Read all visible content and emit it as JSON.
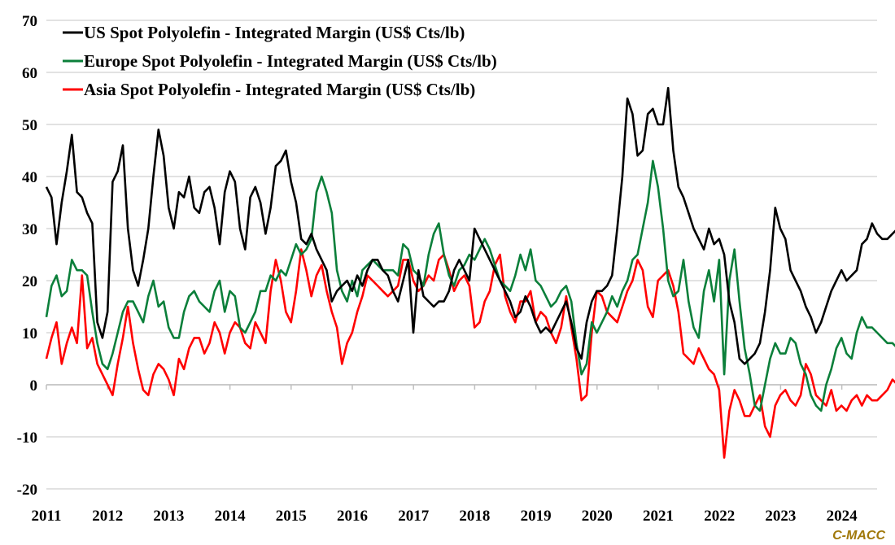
{
  "chart_data": {
    "type": "line",
    "title": "",
    "xlabel": "",
    "ylabel": "",
    "ylim": [
      -20,
      70
    ],
    "yticks": [
      70,
      60,
      50,
      40,
      30,
      20,
      10,
      0,
      -10,
      -20
    ],
    "xlim": [
      2011.0,
      2024.55
    ],
    "xticks": [
      "2011",
      "2012",
      "2013",
      "2014",
      "2015",
      "2016",
      "2017",
      "2018",
      "2019",
      "2020",
      "2021",
      "2022",
      "2023",
      "2024"
    ],
    "grid": true,
    "legend_position": "top-left",
    "x_start": 2011.0,
    "x_step": 0.0833,
    "series": [
      {
        "name": "US Spot Polyolefin - Integrated Margin (US$ Cts/lb)",
        "color": "#000000",
        "values": [
          38,
          36,
          27,
          35,
          41,
          48,
          37,
          36,
          33,
          31,
          12,
          9,
          14,
          39,
          41,
          46,
          30,
          22,
          19,
          24,
          30,
          40,
          49,
          44,
          34,
          30,
          37,
          36,
          40,
          34,
          33,
          37,
          38,
          34,
          27,
          37,
          41,
          39,
          30,
          26,
          36,
          38,
          35,
          29,
          34,
          42,
          43,
          45,
          39,
          35,
          28,
          27,
          29,
          26,
          24,
          22,
          16,
          18,
          19,
          20,
          18,
          21,
          19,
          22,
          24,
          24,
          22,
          21,
          18,
          16,
          20,
          24,
          10,
          22,
          17,
          16,
          15,
          16,
          16,
          18,
          22,
          24,
          22,
          20,
          30,
          28,
          26,
          24,
          22,
          20,
          18,
          16,
          13,
          14,
          17,
          15,
          12,
          10,
          11,
          10,
          12,
          14,
          16,
          12,
          7,
          5,
          12,
          16,
          18,
          18,
          19,
          21,
          30,
          40,
          55,
          52,
          44,
          45,
          52,
          53,
          50,
          50,
          57,
          45,
          38,
          36,
          33,
          30,
          28,
          26,
          30,
          27,
          28,
          25,
          16,
          12,
          5,
          4,
          5,
          6,
          8,
          14,
          22,
          34,
          30,
          28,
          22,
          20,
          18,
          15,
          13,
          10,
          12,
          15,
          18,
          20,
          22,
          20,
          21,
          22,
          27,
          28,
          31,
          29,
          28,
          28,
          29,
          30,
          33
        ]
      },
      {
        "name": "Europe Spot Polyolefin - Integrated Margin (US$ Cts/lb)",
        "color": "#0b7f3a",
        "values": [
          13,
          19,
          21,
          17,
          18,
          24,
          22,
          22,
          21,
          14,
          8,
          4,
          3,
          6,
          10,
          14,
          16,
          16,
          14,
          12,
          17,
          20,
          15,
          16,
          11,
          9,
          9,
          14,
          17,
          18,
          16,
          15,
          14,
          18,
          20,
          14,
          18,
          17,
          11,
          10,
          12,
          14,
          18,
          18,
          21,
          20,
          22,
          21,
          24,
          27,
          25,
          26,
          28,
          37,
          40,
          37,
          33,
          22,
          18,
          16,
          20,
          17,
          22,
          23,
          24,
          23,
          22,
          22,
          22,
          21,
          27,
          26,
          22,
          21,
          19,
          25,
          29,
          31,
          25,
          21,
          19,
          22,
          23,
          25,
          24,
          26,
          28,
          26,
          23,
          20,
          19,
          18,
          21,
          25,
          22,
          26,
          20,
          19,
          17,
          15,
          16,
          18,
          19,
          16,
          8,
          2,
          4,
          12,
          10,
          12,
          14,
          17,
          15,
          18,
          20,
          24,
          25,
          30,
          35,
          43,
          38,
          30,
          20,
          17,
          18,
          24,
          16,
          11,
          9,
          18,
          22,
          16,
          24,
          2,
          20,
          26,
          16,
          7,
          2,
          -4,
          -5,
          0,
          5,
          8,
          6,
          6,
          9,
          8,
          4,
          2,
          -2,
          -4,
          -5,
          0,
          3,
          7,
          9,
          6,
          5,
          10,
          13,
          11,
          11,
          10,
          9,
          8,
          8,
          7,
          8
        ]
      },
      {
        "name": "Asia Spot Polyolefin - Integrated Margin (US$ Cts/lb)",
        "color": "#ff0000",
        "values": [
          5,
          9,
          12,
          4,
          8,
          11,
          8,
          21,
          7,
          9,
          4,
          2,
          0,
          -2,
          4,
          9,
          15,
          8,
          3,
          -1,
          -2,
          2,
          4,
          3,
          1,
          -2,
          5,
          3,
          7,
          9,
          9,
          6,
          8,
          12,
          10,
          6,
          10,
          12,
          11,
          8,
          7,
          12,
          10,
          8,
          18,
          24,
          20,
          14,
          12,
          18,
          26,
          22,
          17,
          21,
          23,
          18,
          14,
          11,
          4,
          8,
          10,
          14,
          17,
          21,
          20,
          19,
          18,
          17,
          18,
          19,
          24,
          24,
          20,
          18,
          19,
          21,
          20,
          24,
          25,
          22,
          18,
          20,
          21,
          19,
          11,
          12,
          16,
          18,
          23,
          25,
          17,
          14,
          12,
          16,
          16,
          18,
          12,
          14,
          13,
          10,
          8,
          11,
          17,
          11,
          5,
          -3,
          -2,
          10,
          18,
          17,
          14,
          13,
          12,
          15,
          18,
          20,
          24,
          22,
          15,
          13,
          20,
          21,
          22,
          19,
          14,
          6,
          5,
          4,
          7,
          5,
          3,
          2,
          -1,
          -14,
          -5,
          -1,
          -3,
          -6,
          -6,
          -4,
          -2,
          -8,
          -10,
          -4,
          -2,
          -1,
          -3,
          -4,
          -2,
          4,
          2,
          -2,
          -3,
          -4,
          -1,
          -5,
          -4,
          -5,
          -3,
          -2,
          -4,
          -2,
          -3,
          -3,
          -2,
          -1,
          1,
          0,
          -4
        ]
      }
    ]
  },
  "brand": {
    "label": "C-MACC",
    "color": "#a0780a"
  }
}
